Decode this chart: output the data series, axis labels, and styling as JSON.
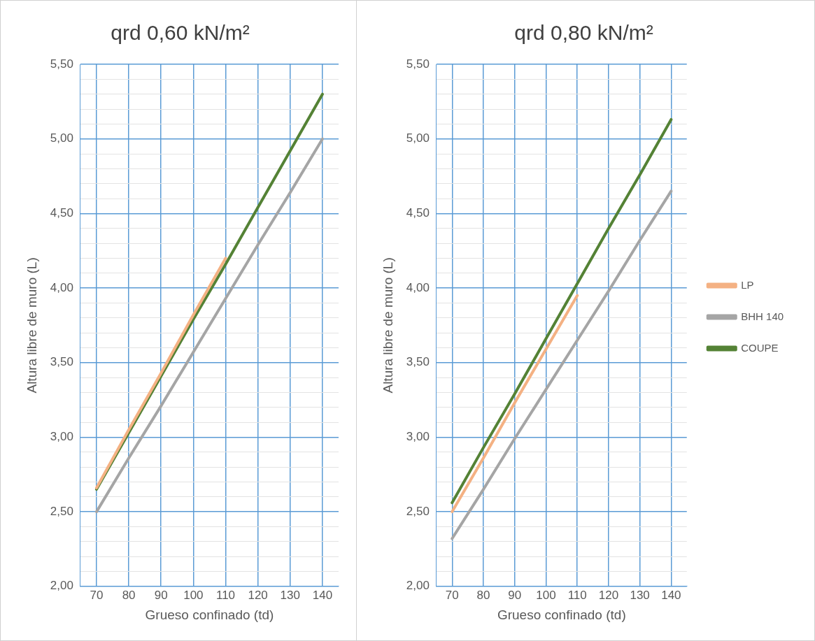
{
  "chart_data": [
    {
      "type": "line",
      "title": "qrd 0,60 kN/m²",
      "xlabel": "Grueso confinado (td)",
      "ylabel": "Altura libre de muro (L)",
      "categories": [
        "70",
        "80",
        "90",
        "100",
        "110",
        "120",
        "130",
        "140"
      ],
      "series": [
        {
          "color": "#f4b183",
          "values": [
            2.66,
            3.05,
            3.43,
            3.82,
            4.2,
            null,
            null,
            null
          ]
        },
        {
          "color": "#a5a5a5",
          "values": [
            2.5,
            2.86,
            3.21,
            3.57,
            3.93,
            4.29,
            4.64,
            5.0
          ]
        },
        {
          "color": "#548235",
          "values": [
            2.65,
            3.03,
            3.41,
            3.79,
            4.16,
            4.54,
            4.92,
            5.3
          ]
        }
      ],
      "ylim": [
        2,
        5.5
      ],
      "yticks": [
        {
          "value": 2,
          "label": "2,00"
        },
        {
          "value": 2.1,
          "label": null
        },
        {
          "value": 2.2,
          "label": null
        },
        {
          "value": 2.3,
          "label": null
        },
        {
          "value": 2.4,
          "label": null
        },
        {
          "value": 2.5,
          "label": "2,50"
        },
        {
          "value": 2.6,
          "label": null
        },
        {
          "value": 2.7,
          "label": null
        },
        {
          "value": 2.8,
          "label": null
        },
        {
          "value": 2.9,
          "label": null
        },
        {
          "value": 3,
          "label": "3,00"
        },
        {
          "value": 3.1,
          "label": null
        },
        {
          "value": 3.2,
          "label": null
        },
        {
          "value": 3.3,
          "label": null
        },
        {
          "value": 3.4,
          "label": null
        },
        {
          "value": 3.5,
          "label": "3,50"
        },
        {
          "value": 3.6,
          "label": null
        },
        {
          "value": 3.7,
          "label": null
        },
        {
          "value": 3.8,
          "label": null
        },
        {
          "value": 3.9,
          "label": null
        },
        {
          "value": 4,
          "label": "4,00"
        },
        {
          "value": 4.1,
          "label": null
        },
        {
          "value": 4.2,
          "label": null
        },
        {
          "value": 4.3,
          "label": null
        },
        {
          "value": 4.4,
          "label": null
        },
        {
          "value": 4.5,
          "label": "4,50"
        },
        {
          "value": 4.6,
          "label": null
        },
        {
          "value": 4.7,
          "label": null
        },
        {
          "value": 4.8,
          "label": null
        },
        {
          "value": 4.9,
          "label": null
        },
        {
          "value": 5,
          "label": "5,00"
        },
        {
          "value": 5.1,
          "label": null
        },
        {
          "value": 5.2,
          "label": null
        },
        {
          "value": 5.3,
          "label": null
        },
        {
          "value": 5.4,
          "label": null
        },
        {
          "value": 5.5,
          "label": "5,50"
        }
      ],
      "grid": true,
      "legend": false,
      "marker": "none",
      "line_style": "solid"
    },
    {
      "type": "line",
      "title": "qrd 0,80 kN/m²",
      "xlabel": "Grueso confinado (td)",
      "ylabel": "Altura libre de muro (L)",
      "categories": [
        "70",
        "80",
        "90",
        "100",
        "110",
        "120",
        "130",
        "140"
      ],
      "series": [
        {
          "name": "LP",
          "color": "#f4b183",
          "values": [
            2.5,
            2.86,
            3.23,
            3.59,
            3.95,
            null,
            null,
            null
          ]
        },
        {
          "name": "BHH 140",
          "color": "#a5a5a5",
          "values": [
            2.32,
            2.65,
            2.99,
            3.32,
            3.65,
            3.98,
            4.32,
            4.65
          ]
        },
        {
          "name": "COUPE",
          "color": "#548235",
          "values": [
            2.56,
            2.93,
            3.29,
            3.66,
            4.03,
            4.4,
            4.76,
            5.13
          ]
        }
      ],
      "ylim": [
        2,
        5.5
      ],
      "yticks": [
        {
          "value": 2,
          "label": "2,00"
        },
        {
          "value": 2.1,
          "label": null
        },
        {
          "value": 2.2,
          "label": null
        },
        {
          "value": 2.3,
          "label": null
        },
        {
          "value": 2.4,
          "label": null
        },
        {
          "value": 2.5,
          "label": "2,50"
        },
        {
          "value": 2.6,
          "label": null
        },
        {
          "value": 2.7,
          "label": null
        },
        {
          "value": 2.8,
          "label": null
        },
        {
          "value": 2.9,
          "label": null
        },
        {
          "value": 3,
          "label": "3,00"
        },
        {
          "value": 3.1,
          "label": null
        },
        {
          "value": 3.2,
          "label": null
        },
        {
          "value": 3.3,
          "label": null
        },
        {
          "value": 3.4,
          "label": null
        },
        {
          "value": 3.5,
          "label": "3,50"
        },
        {
          "value": 3.6,
          "label": null
        },
        {
          "value": 3.7,
          "label": null
        },
        {
          "value": 3.8,
          "label": null
        },
        {
          "value": 3.9,
          "label": null
        },
        {
          "value": 4,
          "label": "4,00"
        },
        {
          "value": 4.1,
          "label": null
        },
        {
          "value": 4.2,
          "label": null
        },
        {
          "value": 4.3,
          "label": null
        },
        {
          "value": 4.4,
          "label": null
        },
        {
          "value": 4.5,
          "label": "4,50"
        },
        {
          "value": 4.6,
          "label": null
        },
        {
          "value": 4.7,
          "label": null
        },
        {
          "value": 4.8,
          "label": null
        },
        {
          "value": 4.9,
          "label": null
        },
        {
          "value": 5,
          "label": "5,00"
        },
        {
          "value": 5.1,
          "label": null
        },
        {
          "value": 5.2,
          "label": null
        },
        {
          "value": 5.3,
          "label": null
        },
        {
          "value": 5.4,
          "label": null
        },
        {
          "value": 5.5,
          "label": "5,50"
        }
      ],
      "grid": true,
      "legend": "right",
      "marker": "none",
      "line_style": "solid"
    }
  ]
}
